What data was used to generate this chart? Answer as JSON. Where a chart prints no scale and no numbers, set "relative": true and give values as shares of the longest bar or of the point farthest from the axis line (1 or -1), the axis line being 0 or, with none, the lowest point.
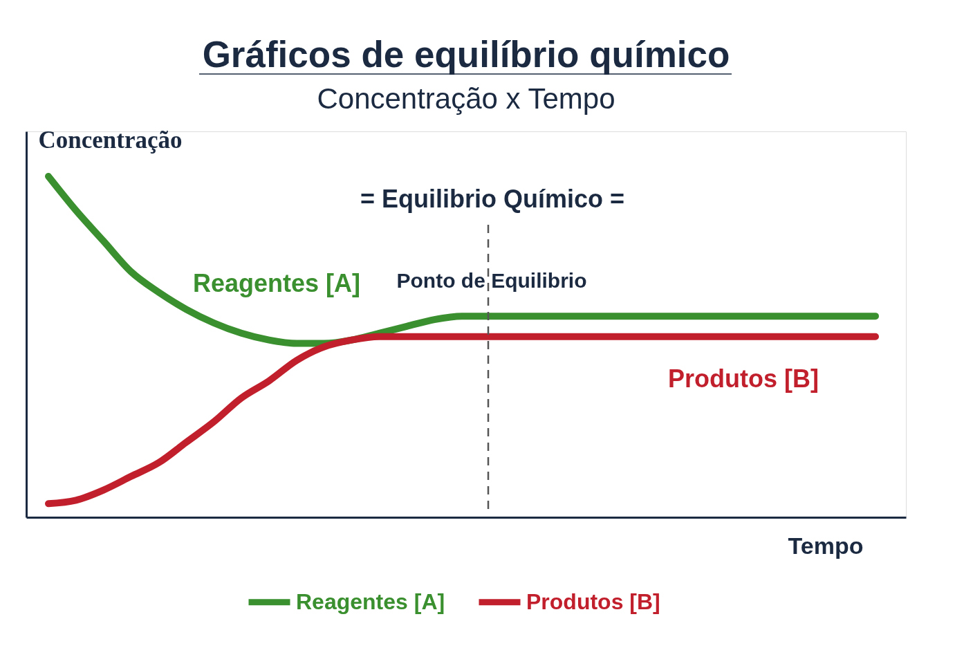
{
  "chart_data": {
    "type": "line",
    "title": "Gráficos de equilíbrio químico",
    "subtitle": "Concentração x Tempo",
    "xlabel": "Tempo",
    "ylabel": "Concentração",
    "relative": true,
    "categories": [
      null,
      null,
      null,
      null,
      null,
      null,
      null,
      null,
      null,
      null,
      null,
      null,
      null,
      null,
      null,
      null,
      null,
      null,
      null,
      null,
      null,
      null,
      null,
      null,
      null,
      null,
      null,
      null,
      null,
      null,
      null
    ],
    "series": [
      {
        "name": "Reagentes [A]",
        "color": "#3a8f2e",
        "values": [
          1.0,
          0.9,
          0.81,
          0.72,
          0.66,
          0.61,
          0.57,
          0.54,
          0.52,
          0.51,
          0.51,
          0.52,
          0.54,
          0.56,
          0.58,
          0.59,
          0.59,
          0.59,
          0.59,
          0.59,
          0.59,
          0.59,
          0.59,
          0.59,
          0.59,
          0.59,
          0.59,
          0.59,
          0.59,
          0.59,
          0.59
        ]
      },
      {
        "name": "Produtos [B]",
        "color": "#c21f2c",
        "values": [
          0.04,
          0.05,
          0.08,
          0.12,
          0.16,
          0.22,
          0.28,
          0.35,
          0.4,
          0.46,
          0.5,
          0.52,
          0.53,
          0.53,
          0.53,
          0.53,
          0.53,
          0.53,
          0.53,
          0.53,
          0.53,
          0.53,
          0.53,
          0.53,
          0.53,
          0.53,
          0.53,
          0.53,
          0.53,
          0.53,
          0.53
        ]
      }
    ],
    "annotations": [
      "= Equilibrio Químico =",
      "Ponto de Equilibrio"
    ],
    "legend": "bottom",
    "grid": false,
    "marker": "none",
    "line_style": "solid"
  }
}
